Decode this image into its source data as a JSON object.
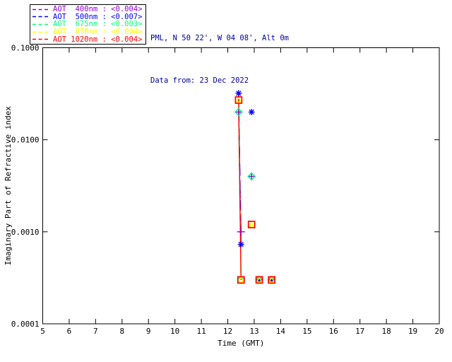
{
  "header": {
    "station_line": "PML, N 50 22', W 04 08', Alt 0m",
    "data_from_line": "Data from: 23 Dec 2022",
    "text_color": "#000099"
  },
  "legend": {
    "items": [
      {
        "label": "AOT  400nm : <0.004>",
        "color": "#9400D3",
        "series": "400nm"
      },
      {
        "label": "AOT  500nm : <0.007>",
        "color": "#0000FF",
        "series": "500nm"
      },
      {
        "label": "AOT  675nm : <0.003>",
        "color": "#00FF7F",
        "series": "675nm"
      },
      {
        "label": "AOT  870nm : <0.004>",
        "color": "#FFFF00",
        "series": "870nm"
      },
      {
        "label": "AOT 1020nm : <0.004>",
        "color": "#FF0000",
        "series": "1020nm"
      }
    ]
  },
  "chart_data": {
    "type": "scatter",
    "title": "PML, N 50 22', W 04 08', Alt 0m",
    "subtitle": "Data from: 23 Dec 2022",
    "xlabel": "Time (GMT)",
    "ylabel": "Imaginary Part of Refractive index",
    "xlim": [
      5,
      20
    ],
    "ylim": [
      0.0001,
      0.1
    ],
    "yscale": "log",
    "grid": false,
    "x_ticks": [
      5,
      6,
      7,
      8,
      9,
      10,
      11,
      12,
      13,
      14,
      15,
      16,
      17,
      18,
      19,
      20
    ],
    "y_tick_values": [
      0.1,
      0.01,
      0.001,
      0.0001
    ],
    "y_tick_labels": [
      "0.1000",
      "0.0100",
      "0.0010",
      "0.0001"
    ],
    "axis_color": "#000000",
    "series": [
      {
        "name": "AOT 400nm",
        "color": "#9400D3",
        "marker": "plus",
        "linestyle": "dashed",
        "dash": [
          10,
          6
        ],
        "points": [
          [
            12.41,
            0.02
          ],
          [
            12.5,
            0.001
          ],
          [
            12.9,
            0.004
          ]
        ]
      },
      {
        "name": "AOT 500nm",
        "color": "#0000FF",
        "marker": "asterisk",
        "linestyle": "dashed",
        "dash": [
          16,
          9
        ],
        "points": [
          [
            12.41,
            0.032
          ],
          [
            12.5,
            0.00073
          ],
          [
            12.9,
            0.02
          ],
          [
            13.19,
            0.0003
          ],
          [
            13.66,
            0.0003
          ]
        ]
      },
      {
        "name": "AOT 675nm",
        "color": "#00FF7F",
        "marker": "diamond",
        "linestyle": "dashed",
        "dash": [
          11,
          7
        ],
        "points": [
          [
            12.41,
            0.02
          ],
          [
            12.5,
            0.0003
          ],
          [
            12.9,
            0.004
          ],
          [
            13.19,
            0.0003
          ],
          [
            13.66,
            0.0003
          ]
        ]
      },
      {
        "name": "AOT 870nm",
        "color": "#FFFF00",
        "marker": "triangle",
        "linestyle": "dashed",
        "dash": [
          12,
          7
        ],
        "points": [
          [
            12.41,
            0.027
          ],
          [
            12.5,
            0.0003
          ],
          [
            12.9,
            0.0012
          ],
          [
            13.19,
            0.0003
          ],
          [
            13.66,
            0.0003
          ]
        ]
      },
      {
        "name": "AOT 1020nm",
        "color": "#FF0000",
        "marker": "square",
        "linestyle": "solid",
        "dash": null,
        "points": [
          [
            12.41,
            0.027
          ],
          [
            12.5,
            0.0003
          ],
          [
            12.9,
            0.0012
          ],
          [
            13.19,
            0.0003
          ],
          [
            13.66,
            0.0003
          ]
        ]
      }
    ],
    "line_connect_max_dt": 0.15
  }
}
